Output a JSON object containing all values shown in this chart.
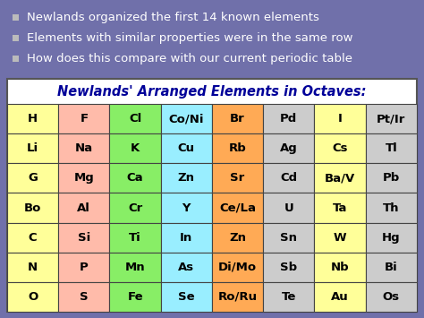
{
  "bg_color": "#7070aa",
  "bullet_text_color": "#ffffff",
  "bullet_square_color": "#bbbbbb",
  "bullets": [
    "Newlands organized the first 14 known elements",
    "Elements with similar properties were in the same row",
    "How does this compare with our current periodic table"
  ],
  "table_title": "Newlands' Arranged Elements in Octaves:",
  "table_title_color": "#000099",
  "table_bg": "#ffffff",
  "col_colors": [
    "#ffff99",
    "#ffbbaa",
    "#88ee66",
    "#99eeff",
    "#ffaa55",
    "#cccccc",
    "#ffff99",
    "#cccccc"
  ],
  "table_data": [
    [
      "H",
      "F",
      "Cl",
      "Co/Ni",
      "Br",
      "Pd",
      "I",
      "Pt/Ir"
    ],
    [
      "Li",
      "Na",
      "K",
      "Cu",
      "Rb",
      "Ag",
      "Cs",
      "Tl"
    ],
    [
      "G",
      "Mg",
      "Ca",
      "Zn",
      "Sr",
      "Cd",
      "Ba/V",
      "Pb"
    ],
    [
      "Bo",
      "Al",
      "Cr",
      "Y",
      "Ce/La",
      "U",
      "Ta",
      "Th"
    ],
    [
      "C",
      "Si",
      "Ti",
      "In",
      "Zn",
      "Sn",
      "W",
      "Hg"
    ],
    [
      "N",
      "P",
      "Mn",
      "As",
      "Di/Mo",
      "Sb",
      "Nb",
      "Bi"
    ],
    [
      "O",
      "S",
      "Fe",
      "Se",
      "Ro/Ru",
      "Te",
      "Au",
      "Os"
    ]
  ],
  "num_rows": 7,
  "num_cols": 8,
  "bullet_fontsize": 9.5,
  "table_title_fontsize": 10.5,
  "cell_fontsize": 9.5
}
